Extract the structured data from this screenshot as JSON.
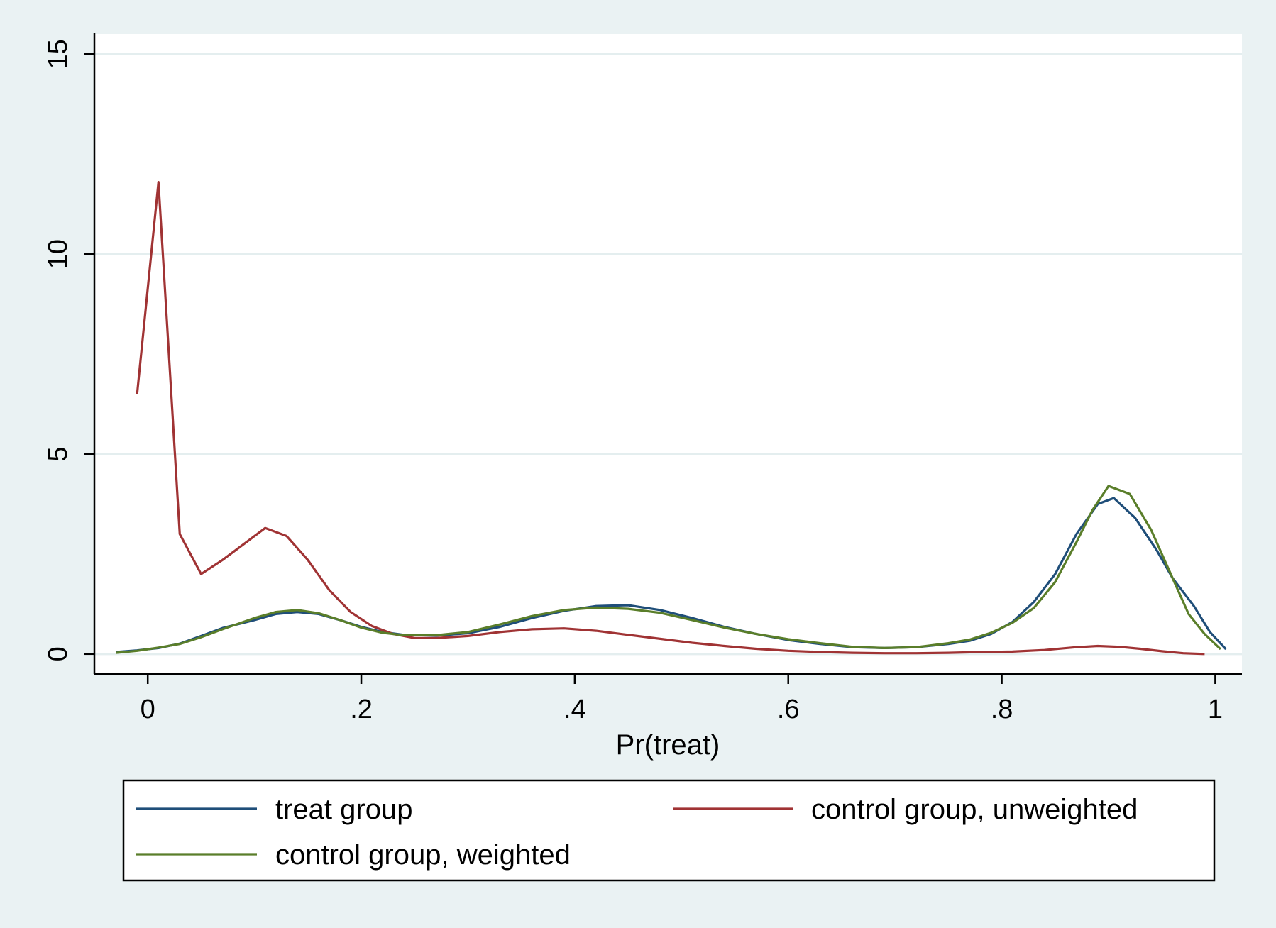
{
  "chart_data": {
    "type": "line",
    "title": "",
    "xlabel": "Pr(treat)",
    "ylabel": "",
    "xlim": [
      -0.05,
      1.025
    ],
    "ylim": [
      -0.5,
      15.5
    ],
    "grid": true,
    "xticks": [
      {
        "value": 0,
        "label": "0"
      },
      {
        "value": 0.2,
        "label": ".2"
      },
      {
        "value": 0.4,
        "label": ".4"
      },
      {
        "value": 0.6,
        "label": ".6"
      },
      {
        "value": 0.8,
        "label": ".8"
      },
      {
        "value": 1,
        "label": "1"
      }
    ],
    "yticks": [
      {
        "value": 0,
        "label": "0"
      },
      {
        "value": 5,
        "label": "5"
      },
      {
        "value": 10,
        "label": "10"
      },
      {
        "value": 15,
        "label": "15"
      }
    ],
    "legend": {
      "position": "bottom",
      "columns": 2
    },
    "colors": {
      "background": "#eaf2f3",
      "plot_background": "#ffffff",
      "gridline": "#e4eeef"
    },
    "series": [
      {
        "name": "treat group",
        "color": "#1f4e79",
        "points": [
          [
            -0.03,
            0.05
          ],
          [
            -0.01,
            0.09
          ],
          [
            0.01,
            0.15
          ],
          [
            0.03,
            0.26
          ],
          [
            0.05,
            0.45
          ],
          [
            0.07,
            0.65
          ],
          [
            0.1,
            0.85
          ],
          [
            0.12,
            1.0
          ],
          [
            0.14,
            1.05
          ],
          [
            0.16,
            1.0
          ],
          [
            0.18,
            0.85
          ],
          [
            0.2,
            0.68
          ],
          [
            0.22,
            0.55
          ],
          [
            0.24,
            0.48
          ],
          [
            0.27,
            0.46
          ],
          [
            0.3,
            0.52
          ],
          [
            0.33,
            0.68
          ],
          [
            0.36,
            0.9
          ],
          [
            0.39,
            1.08
          ],
          [
            0.42,
            1.2
          ],
          [
            0.45,
            1.22
          ],
          [
            0.48,
            1.1
          ],
          [
            0.51,
            0.9
          ],
          [
            0.54,
            0.68
          ],
          [
            0.57,
            0.5
          ],
          [
            0.6,
            0.35
          ],
          [
            0.63,
            0.25
          ],
          [
            0.66,
            0.17
          ],
          [
            0.69,
            0.15
          ],
          [
            0.72,
            0.17
          ],
          [
            0.75,
            0.25
          ],
          [
            0.77,
            0.33
          ],
          [
            0.79,
            0.5
          ],
          [
            0.81,
            0.8
          ],
          [
            0.83,
            1.3
          ],
          [
            0.85,
            2.0
          ],
          [
            0.87,
            3.0
          ],
          [
            0.89,
            3.75
          ],
          [
            0.905,
            3.9
          ],
          [
            0.925,
            3.4
          ],
          [
            0.945,
            2.6
          ],
          [
            0.96,
            1.9
          ],
          [
            0.98,
            1.2
          ],
          [
            0.995,
            0.55
          ],
          [
            1.01,
            0.12
          ]
        ]
      },
      {
        "name": "control group, unweighted",
        "color": "#a03334",
        "points": [
          [
            -0.01,
            6.5
          ],
          [
            0.01,
            11.8
          ],
          [
            0.03,
            3.0
          ],
          [
            0.05,
            2.0
          ],
          [
            0.07,
            2.35
          ],
          [
            0.09,
            2.75
          ],
          [
            0.11,
            3.15
          ],
          [
            0.13,
            2.95
          ],
          [
            0.15,
            2.35
          ],
          [
            0.17,
            1.6
          ],
          [
            0.19,
            1.05
          ],
          [
            0.21,
            0.7
          ],
          [
            0.23,
            0.5
          ],
          [
            0.25,
            0.4
          ],
          [
            0.27,
            0.4
          ],
          [
            0.3,
            0.45
          ],
          [
            0.33,
            0.55
          ],
          [
            0.36,
            0.62
          ],
          [
            0.39,
            0.64
          ],
          [
            0.42,
            0.58
          ],
          [
            0.45,
            0.48
          ],
          [
            0.48,
            0.38
          ],
          [
            0.51,
            0.28
          ],
          [
            0.54,
            0.2
          ],
          [
            0.57,
            0.13
          ],
          [
            0.6,
            0.08
          ],
          [
            0.63,
            0.05
          ],
          [
            0.66,
            0.03
          ],
          [
            0.69,
            0.02
          ],
          [
            0.72,
            0.02
          ],
          [
            0.75,
            0.03
          ],
          [
            0.78,
            0.05
          ],
          [
            0.81,
            0.06
          ],
          [
            0.84,
            0.1
          ],
          [
            0.87,
            0.17
          ],
          [
            0.89,
            0.2
          ],
          [
            0.91,
            0.18
          ],
          [
            0.93,
            0.13
          ],
          [
            0.95,
            0.07
          ],
          [
            0.97,
            0.02
          ],
          [
            0.99,
            0.0
          ]
        ]
      },
      {
        "name": "control group, weighted",
        "color": "#5a7e2a",
        "points": [
          [
            -0.03,
            0.03
          ],
          [
            -0.01,
            0.08
          ],
          [
            0.01,
            0.16
          ],
          [
            0.03,
            0.25
          ],
          [
            0.05,
            0.42
          ],
          [
            0.07,
            0.62
          ],
          [
            0.1,
            0.9
          ],
          [
            0.12,
            1.05
          ],
          [
            0.14,
            1.1
          ],
          [
            0.16,
            1.02
          ],
          [
            0.18,
            0.85
          ],
          [
            0.2,
            0.66
          ],
          [
            0.22,
            0.53
          ],
          [
            0.24,
            0.47
          ],
          [
            0.27,
            0.47
          ],
          [
            0.3,
            0.55
          ],
          [
            0.33,
            0.74
          ],
          [
            0.36,
            0.95
          ],
          [
            0.39,
            1.1
          ],
          [
            0.42,
            1.16
          ],
          [
            0.45,
            1.13
          ],
          [
            0.48,
            1.03
          ],
          [
            0.51,
            0.85
          ],
          [
            0.54,
            0.66
          ],
          [
            0.57,
            0.5
          ],
          [
            0.6,
            0.37
          ],
          [
            0.63,
            0.27
          ],
          [
            0.66,
            0.18
          ],
          [
            0.69,
            0.15
          ],
          [
            0.72,
            0.17
          ],
          [
            0.75,
            0.27
          ],
          [
            0.77,
            0.36
          ],
          [
            0.79,
            0.53
          ],
          [
            0.81,
            0.78
          ],
          [
            0.83,
            1.15
          ],
          [
            0.85,
            1.8
          ],
          [
            0.87,
            2.8
          ],
          [
            0.885,
            3.6
          ],
          [
            0.9,
            4.2
          ],
          [
            0.92,
            4.0
          ],
          [
            0.94,
            3.1
          ],
          [
            0.96,
            1.9
          ],
          [
            0.975,
            1.0
          ],
          [
            0.99,
            0.5
          ],
          [
            1.005,
            0.12
          ]
        ]
      }
    ]
  }
}
